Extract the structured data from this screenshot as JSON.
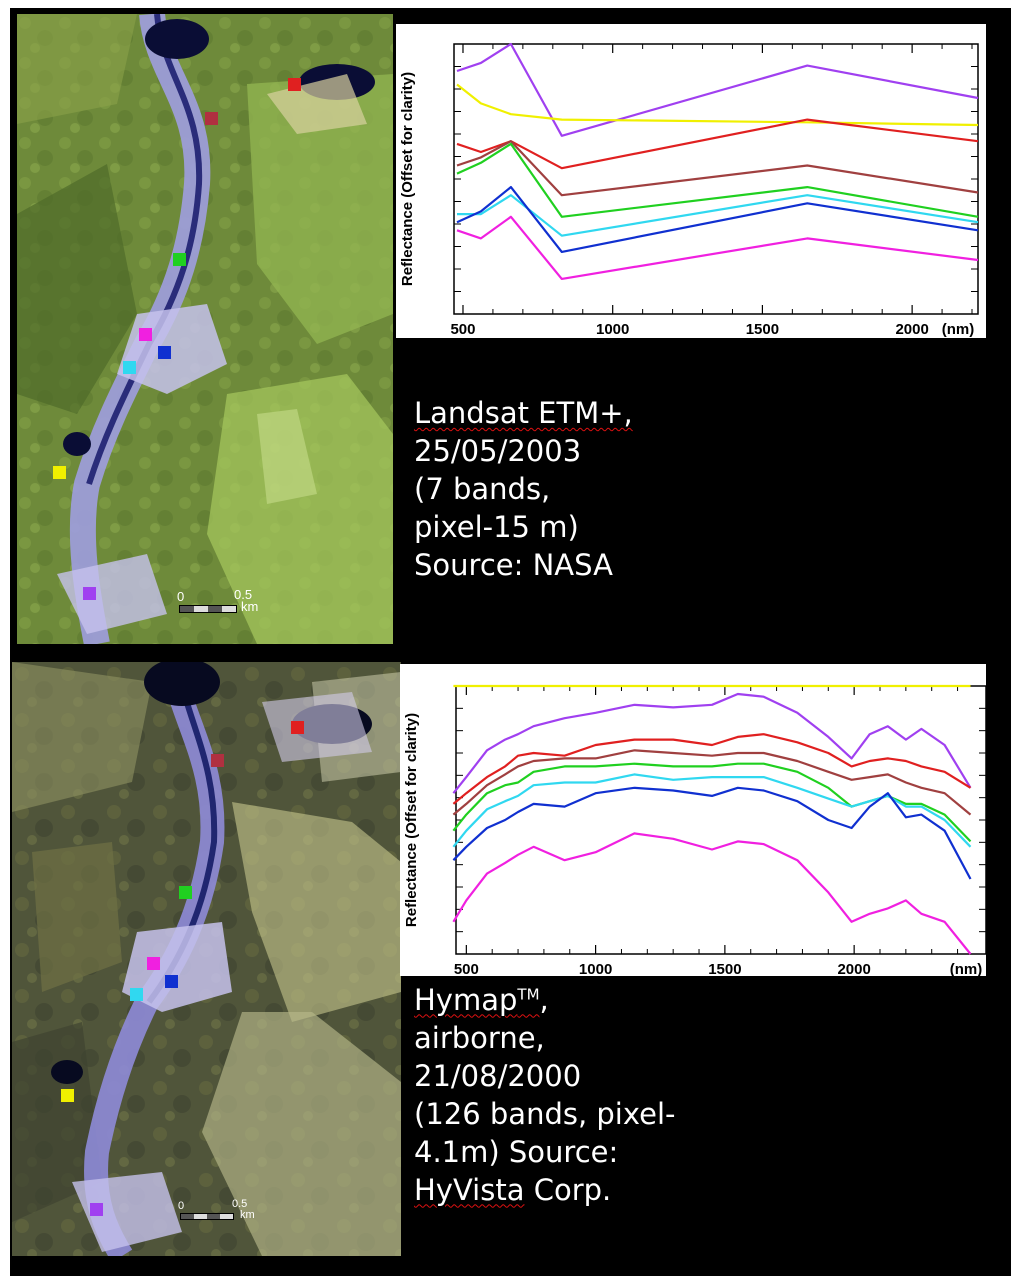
{
  "landsat": {
    "caption_lines": [
      "Landsat ETM+,",
      "25/05/2003",
      "(7 bands,",
      "pixel-15 m)",
      "Source: NASA"
    ],
    "scale_bar": {
      "zero": "0",
      "half": "0.5",
      "unit": "km"
    }
  },
  "hymap": {
    "caption": {
      "line1_word": "Hymap",
      "line1_sup": "TM",
      "line1_end": ",",
      "line2": "airborne,",
      "line3": "21/08/2000",
      "line4": "(126 bands, pixel-",
      "line5": "4.1m) Source:",
      "line6_word": "HyVista",
      "line6_end": " Corp."
    },
    "scale_bar": {
      "zero": "0",
      "half": "0.5",
      "unit": "km"
    }
  },
  "colors": {
    "purple": "#a040f0",
    "yellow": "#f0f000",
    "red": "#e02020",
    "brown": "#a04040",
    "green": "#20d020",
    "cyan": "#30d8f0",
    "blue": "#1030d0",
    "magenta": "#f020e0"
  },
  "markers": [
    {
      "name": "marker-red",
      "color": "#e02020"
    },
    {
      "name": "marker-brown",
      "color": "#b03040"
    },
    {
      "name": "marker-green",
      "color": "#20d020"
    },
    {
      "name": "marker-magenta",
      "color": "#f020e0"
    },
    {
      "name": "marker-blue",
      "color": "#1030d0"
    },
    {
      "name": "marker-cyan",
      "color": "#30d8f0"
    },
    {
      "name": "marker-yellow",
      "color": "#f0f000"
    },
    {
      "name": "marker-purple",
      "color": "#a040f0"
    }
  ],
  "chart_data": [
    {
      "type": "line",
      "xlabel": "(nm)",
      "ylabel": "Reflectance (Offset for clarity)",
      "xlim": [
        470,
        2220
      ],
      "ylim": [
        0,
        100
      ],
      "x_ticks": [
        500,
        1000,
        1500,
        2000
      ],
      "x_tick_labels": [
        "500",
        "1000",
        "1500",
        "2000"
      ],
      "grid": false,
      "y_tick_labels": false,
      "x": [
        480,
        560,
        660,
        830,
        1650,
        2220
      ],
      "series": [
        {
          "color": "#a040f0",
          "values": [
            90,
            93,
            100,
            66,
            92,
            80
          ]
        },
        {
          "color": "#f0f000",
          "values": [
            85,
            78,
            74,
            72,
            71,
            70
          ]
        },
        {
          "color": "#e02020",
          "values": [
            63,
            60,
            64,
            54,
            72,
            64
          ]
        },
        {
          "color": "#a04040",
          "values": [
            55,
            58,
            64,
            44,
            55,
            45
          ]
        },
        {
          "color": "#20d020",
          "values": [
            52,
            56,
            63,
            36,
            47,
            36
          ]
        },
        {
          "color": "#30d8f0",
          "values": [
            37,
            37,
            44,
            29,
            44,
            34
          ]
        },
        {
          "color": "#1030d0",
          "values": [
            34,
            38,
            47,
            23,
            41,
            31
          ]
        },
        {
          "color": "#f020e0",
          "values": [
            31,
            28,
            36,
            13,
            28,
            20
          ]
        }
      ]
    },
    {
      "type": "line",
      "xlabel": "(nm)",
      "ylabel": "Reflectance (Offset for clarity)",
      "xlim": [
        460,
        2510
      ],
      "ylim": [
        0,
        100
      ],
      "x_ticks": [
        500,
        1000,
        1500,
        2000
      ],
      "x_tick_labels": [
        "500",
        "1000",
        "1500",
        "2000"
      ],
      "grid": false,
      "y_tick_labels": false,
      "x": [
        450,
        500,
        580,
        650,
        700,
        760,
        880,
        1000,
        1150,
        1300,
        1450,
        1550,
        1650,
        1780,
        1900,
        1990,
        2060,
        2130,
        2200,
        2260,
        2350,
        2450
      ],
      "series": [
        {
          "color": "#f0f000",
          "values": [
            100,
            100,
            100,
            100,
            100,
            100,
            100,
            100,
            100,
            100,
            100,
            100,
            100,
            100,
            100,
            100,
            100,
            100,
            100,
            100,
            100,
            100
          ]
        },
        {
          "color": "#a040f0",
          "values": [
            60,
            66,
            76,
            80,
            82,
            85,
            88,
            90,
            93,
            92,
            93,
            97,
            96,
            90,
            81,
            73,
            82,
            85,
            80,
            84,
            78,
            62
          ]
        },
        {
          "color": "#e02020",
          "values": [
            56,
            60,
            66,
            70,
            74,
            75,
            74,
            78,
            80,
            80,
            78,
            81,
            82,
            79,
            75,
            70,
            72,
            73,
            72,
            70,
            68,
            62
          ]
        },
        {
          "color": "#a04040",
          "values": [
            52,
            56,
            63,
            67,
            70,
            72,
            73,
            73,
            76,
            75,
            74,
            75,
            75,
            72,
            68,
            65,
            66,
            67,
            64,
            62,
            60,
            52
          ]
        },
        {
          "color": "#20d020",
          "values": [
            46,
            52,
            60,
            63,
            64,
            68,
            70,
            70,
            71,
            70,
            70,
            71,
            71,
            68,
            62,
            55,
            57,
            59,
            56,
            56,
            52,
            42
          ]
        },
        {
          "color": "#30d8f0",
          "values": [
            40,
            46,
            54,
            57,
            59,
            63,
            64,
            64,
            67,
            65,
            66,
            66,
            66,
            62,
            58,
            55,
            57,
            59,
            55,
            55,
            50,
            40
          ]
        },
        {
          "color": "#1030d0",
          "values": [
            35,
            40,
            47,
            50,
            53,
            56,
            55,
            60,
            62,
            61,
            59,
            62,
            61,
            57,
            50,
            47,
            55,
            60,
            51,
            52,
            46,
            28
          ]
        },
        {
          "color": "#f020e0",
          "values": [
            12,
            20,
            30,
            34,
            37,
            40,
            35,
            38,
            45,
            43,
            39,
            42,
            41,
            35,
            23,
            12,
            15,
            17,
            20,
            15,
            12,
            0
          ]
        }
      ]
    }
  ]
}
